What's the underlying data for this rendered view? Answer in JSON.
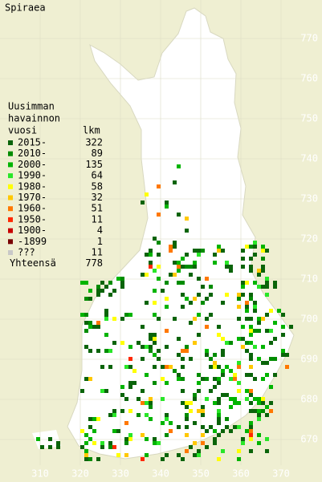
{
  "title": "Spiraea",
  "legend": {
    "heading": [
      "Uusimman",
      "havainnon",
      "vuosi"
    ],
    "count_heading": "lkm",
    "rows": [
      {
        "label": "2015-",
        "count": 322,
        "color": "#0a640a"
      },
      {
        "label": "2010-",
        "count": 89,
        "color": "#008c00"
      },
      {
        "label": "2000-",
        "count": 135,
        "color": "#00b400"
      },
      {
        "label": "1990-",
        "count": 64,
        "color": "#28e628"
      },
      {
        "label": "1980-",
        "count": 58,
        "color": "#ffff00"
      },
      {
        "label": "1970-",
        "count": 32,
        "color": "#ffc800"
      },
      {
        "label": "1960-",
        "count": 51,
        "color": "#ff7800"
      },
      {
        "label": "1950-",
        "count": 11,
        "color": "#ff2800"
      },
      {
        "label": "1900-",
        "count": 4,
        "color": "#c80000"
      },
      {
        "label": "-1899",
        "count": 1,
        "color": "#780000"
      },
      {
        "label": "???",
        "count": 11,
        "color": "#c8c8c8"
      }
    ],
    "total": {
      "label": "Yhteensä",
      "count": 778
    }
  },
  "axes": {
    "x_labels": [
      310,
      320,
      330,
      340,
      350,
      360,
      370
    ],
    "y_labels": [
      670,
      680,
      690,
      700,
      710,
      720,
      730,
      740,
      750,
      760,
      770
    ]
  }
}
